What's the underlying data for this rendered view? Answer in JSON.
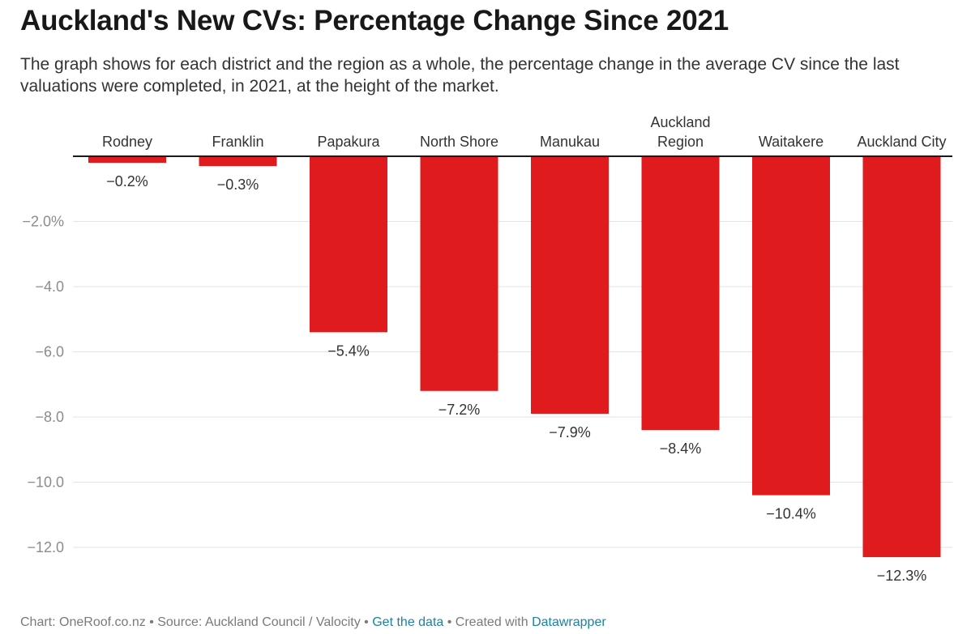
{
  "title": "Auckland's New CVs: Percentage Change Since 2021",
  "subtitle": "The graph shows for each district and the region as a whole, the percentage change in the average CV since the last valuations were completed, in 2021, at the height of the market.",
  "chart_data": {
    "type": "bar",
    "categories": [
      "Rodney",
      "Franklin",
      "Papakura",
      "North Shore",
      "Manukau",
      "Auckland Region",
      "Waitakere",
      "Auckland City"
    ],
    "category_lines": [
      [
        "Rodney"
      ],
      [
        "Franklin"
      ],
      [
        "Papakura"
      ],
      [
        "North Shore"
      ],
      [
        "Manukau"
      ],
      [
        "Auckland",
        "Region"
      ],
      [
        "Waitakere"
      ],
      [
        "Auckland City"
      ]
    ],
    "values": [
      -0.2,
      -0.3,
      -5.4,
      -7.2,
      -7.9,
      -8.4,
      -10.4,
      -12.3
    ],
    "value_labels": [
      "−0.2%",
      "−0.3%",
      "−5.4%",
      "−7.2%",
      "−7.9%",
      "−8.4%",
      "−10.4%",
      "−12.3%"
    ],
    "y_ticks": [
      -2,
      -4,
      -6,
      -8,
      -10,
      -12
    ],
    "y_tick_labels": [
      "−2.0%",
      "−4.0",
      "−6.0",
      "−8.0",
      "−10.0",
      "−12.0"
    ],
    "ylim": [
      -12.3,
      0
    ],
    "bar_color": "#e01b1e",
    "grid": true,
    "xlabel": "",
    "ylabel": ""
  },
  "footer": {
    "prefix": "Chart: OneRoof.co.nz • Source: Auckland Council / Valocity • ",
    "get_data": "Get the data",
    "middle": " • Created with ",
    "datawrapper": "Datawrapper"
  }
}
